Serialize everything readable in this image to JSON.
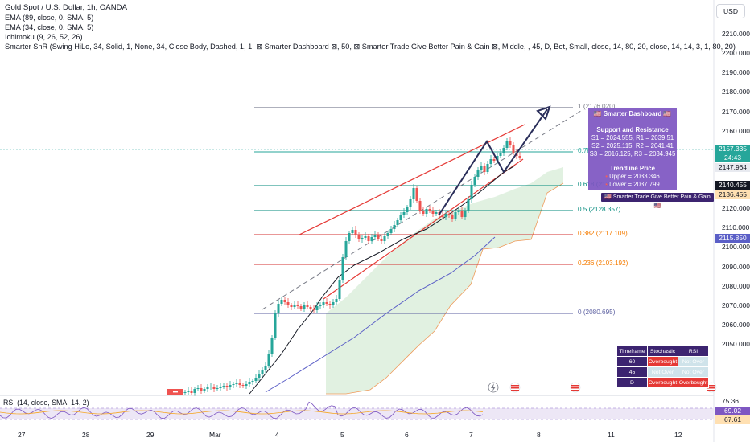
{
  "header": {
    "symbol_title": "Gold Spot / U.S. Dollar, 1h, OANDA",
    "indicators": [
      "EMA (89, close, 0, SMA, 5)",
      "EMA (34, close, 0, SMA, 5)",
      "Ichimoku (9, 26, 52, 26)",
      "Smarter SnR (Swing HiLo, 34, Solid, 1, None, 34, Close Body, Dashed, 1, 1, ⊠ Smarter Dashboard ⊠, 50, ⊠ Smarter Trade Give Better Pain & Gain ⊠, Middle, , 45, D, Bot, Small, close, 14, 80, 20, close, 14, 14, 3, 1, 80, 20)"
    ]
  },
  "currency_button": "USD",
  "price_axis": {
    "ticks": [
      "2210.000",
      "2200.000",
      "2190.000",
      "2180.000",
      "2170.000",
      "2160.000",
      "2150.000",
      "2140.000",
      "2130.000",
      "2120.000",
      "2110.000",
      "2100.000",
      "2090.000",
      "2080.000",
      "2070.000",
      "2060.000",
      "2050.000"
    ]
  },
  "price_tags": {
    "last_price": "2157.335",
    "countdown": "24:43",
    "ema_fast": "2147.964",
    "level_a": "2140.455",
    "level_b": "2136.455",
    "level_c": "2115.850"
  },
  "fib_levels": [
    {
      "label": "1 (2176.020)",
      "color": "#787b86"
    },
    {
      "label": "0.786 (2161.5...)",
      "color": "#26a69a"
    },
    {
      "label": "0.618 (2139.7...)",
      "color": "#00897b"
    },
    {
      "label": "0.5 (2128.357)",
      "color": "#00897b"
    },
    {
      "label": "0.382 (2117.109)",
      "color": "#f57c00"
    },
    {
      "label": "0.236 (2103.192)",
      "color": "#f57c00"
    },
    {
      "label": "0 (2080.695)",
      "color": "#5b5fa0"
    }
  ],
  "dashboard": {
    "title": "Smarter Dashboard",
    "sr_title": "Support and Resistance",
    "s1r1": "S1 = 2024.555, R1 = 2039.51",
    "s2r2": "S2 = 2025.115, R2 = 2041.41",
    "s3r3": "S3 = 2016.125, R3 = 2034.945",
    "trend_title": "Trendline Price",
    "upper": "Upper = 2033.346",
    "lower": "Lower = 2037.799"
  },
  "trade_badge": "Smarter Trade Give Better Pain & Gain",
  "signal_table": {
    "headers": [
      "Timeframe",
      "Stochastic",
      "RSI"
    ],
    "rows": [
      [
        "60",
        "Overbought",
        "Not Over"
      ],
      [
        "45",
        "Not Over",
        "Not Over"
      ],
      [
        "D",
        "Overbought",
        "Overbought"
      ]
    ]
  },
  "rsi": {
    "legend": "RSI (14, close, SMA, 14, 2)",
    "tick_top": "75.36",
    "value": "69.02",
    "ma_value": "67.61"
  },
  "time_axis": [
    "27",
    "28",
    "29",
    "Mar",
    "4",
    "5",
    "6",
    "7",
    "8",
    "11",
    "12"
  ],
  "colors": {
    "up": "#26a69a",
    "down": "#ef5350",
    "ema89": "#5b5fc7",
    "ema34": "#131722",
    "channel": "#e53935",
    "arrow": "#2a2e5a",
    "dashboard_bg": "#7e57c2",
    "cloud": "#c8e6c9"
  }
}
